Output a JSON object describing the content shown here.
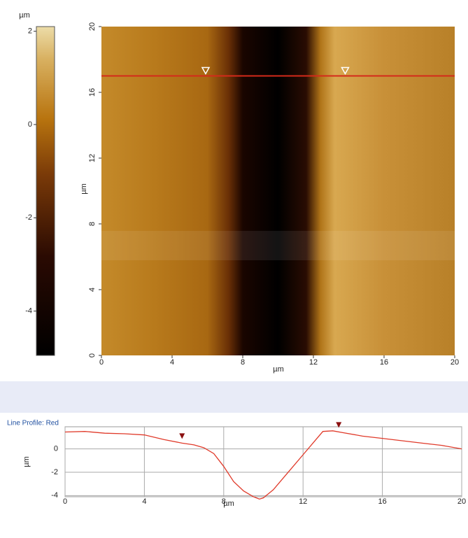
{
  "colorbar": {
    "unit": "µm",
    "lim": [
      -4.95,
      2.1
    ],
    "ticks": [
      2,
      0,
      -2,
      -4
    ]
  },
  "image": {
    "xlabel": "µm",
    "ylabel": "µm",
    "xlim": [
      0,
      20
    ],
    "ylim": [
      0,
      20
    ],
    "xticks": [
      0,
      4,
      8,
      12,
      16,
      20
    ],
    "yticks": [
      0,
      4,
      8,
      12,
      16,
      20
    ],
    "line_y": 17,
    "cursors": [
      5.9,
      13.8
    ],
    "line_color": "#d42a1a"
  },
  "profile": {
    "type": "line",
    "title": "Line Profile: Red",
    "xlabel": "µm",
    "ylabel": "µm",
    "color": "#e03a2a",
    "x": [
      0,
      1,
      2,
      3,
      4,
      5,
      5.9,
      6.5,
      7,
      7.5,
      8,
      8.5,
      9,
      9.5,
      9.8,
      10,
      10.5,
      11,
      11.5,
      12,
      12.5,
      13,
      13.5,
      14,
      15,
      16,
      17,
      18,
      19,
      20
    ],
    "values": [
      1.45,
      1.5,
      1.35,
      1.3,
      1.2,
      0.8,
      0.5,
      0.35,
      0.1,
      -0.4,
      -1.5,
      -2.8,
      -3.6,
      -4.1,
      -4.3,
      -4.2,
      -3.5,
      -2.5,
      -1.5,
      -0.5,
      0.5,
      1.5,
      1.55,
      1.4,
      1.1,
      0.9,
      0.7,
      0.5,
      0.3,
      0.0
    ],
    "xlim": [
      0,
      20
    ],
    "ylim": [
      -4.1,
      1.9
    ],
    "xticks": [
      0,
      4,
      8,
      12,
      16,
      20
    ],
    "yticks": [
      0,
      -2,
      -4
    ],
    "grid": true,
    "markers": [
      5.9,
      13.8
    ],
    "marker_color": "#8b1010"
  }
}
